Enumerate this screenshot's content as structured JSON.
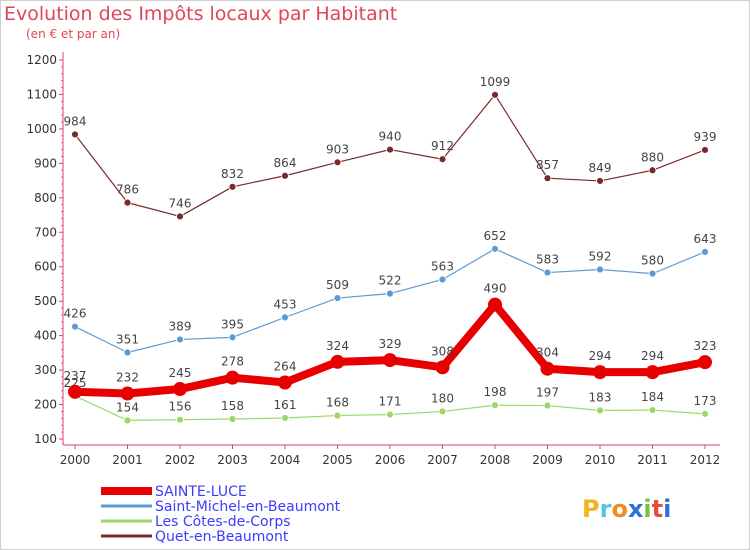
{
  "header": {
    "title": "Evolution des Impôts locaux par Habitant",
    "subtitle": "(en € et par an)"
  },
  "brand": {
    "logo_letters": [
      "P",
      "r",
      "o",
      "x",
      "i",
      "t",
      "i"
    ],
    "logo_colors": [
      "#f0b41e",
      "#5bc0e8",
      "#f08c1e",
      "#2e6fd8",
      "#7ac043",
      "#e94b3c",
      "#2e6fd8"
    ]
  },
  "chart_data": {
    "type": "line",
    "title": "Evolution des Impôts locaux par Habitant",
    "subtitle": "(en € et par an)",
    "xlabel": "",
    "ylabel": "",
    "categories": [
      "2000",
      "2001",
      "2002",
      "2003",
      "2004",
      "2005",
      "2006",
      "2007",
      "2008",
      "2009",
      "2010",
      "2011",
      "2012"
    ],
    "y_ticks": [
      100,
      200,
      300,
      400,
      500,
      600,
      700,
      800,
      900,
      1000,
      1100,
      1200
    ],
    "ylim": [
      100,
      1200
    ],
    "grid": false,
    "legend_position": "bottom-left",
    "series": [
      {
        "name": "SAINTE-LUCE",
        "color": "#e80000",
        "emphasis": true,
        "values": [
          237,
          232,
          245,
          278,
          264,
          324,
          329,
          308,
          490,
          304,
          294,
          294,
          323
        ]
      },
      {
        "name": "Saint-Michel-en-Beaumont",
        "color": "#5b9bd5",
        "emphasis": false,
        "values": [
          426,
          351,
          389,
          395,
          453,
          509,
          522,
          563,
          652,
          583,
          592,
          580,
          643
        ]
      },
      {
        "name": "Les Côtes-de-Corps",
        "color": "#9ad86a",
        "emphasis": false,
        "values": [
          225,
          154,
          156,
          158,
          161,
          168,
          171,
          180,
          198,
          197,
          183,
          184,
          173
        ]
      },
      {
        "name": "Quet-en-Beaumont",
        "color": "#7a2a2a",
        "emphasis": false,
        "values": [
          984,
          786,
          746,
          832,
          864,
          903,
          940,
          912,
          1099,
          857,
          849,
          880,
          939
        ]
      }
    ]
  }
}
